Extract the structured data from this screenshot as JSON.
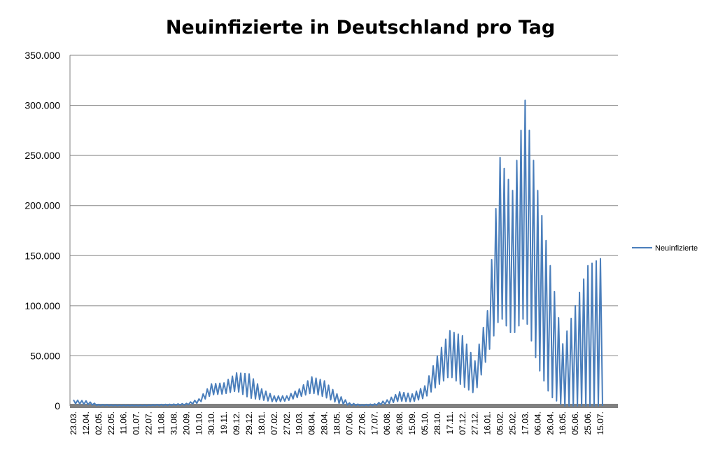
{
  "chart_data": {
    "type": "line",
    "title": "Neuinfizierte in Deutschland pro Tag",
    "xlabel": "",
    "ylabel": "",
    "ylim": [
      0,
      350000
    ],
    "yticks": [
      0,
      50000,
      100000,
      150000,
      200000,
      250000,
      300000,
      350000
    ],
    "ytick_labels": [
      "0",
      "50.000",
      "100.000",
      "150.000",
      "200.000",
      "250.000",
      "300.000",
      "350.000"
    ],
    "x_tick_labels": [
      "23.03.",
      "12.04.",
      "02.05.",
      "22.05.",
      "11.06.",
      "01.07.",
      "22.07.",
      "11.08.",
      "31.08.",
      "20.09.",
      "10.10.",
      "30.10.",
      "19.11.",
      "09.12.",
      "29.12.",
      "18.01.",
      "07.02.",
      "27.02.",
      "19.03.",
      "08.04.",
      "28.04.",
      "18.05.",
      "07.06.",
      "27.06.",
      "17.07.",
      "06.08.",
      "26.08.",
      "15.09.",
      "05.10.",
      "28.10.",
      "17.11.",
      "07.12.",
      "27.12.",
      "16.01.",
      "05.02.",
      "25.02.",
      "17.03.",
      "06.04.",
      "26.04.",
      "16.05.",
      "05.06.",
      "25.06.",
      "15.07."
    ],
    "grid": true,
    "legend_position": "right",
    "series": [
      {
        "name": "Neuinfizierte",
        "color": "#4a7ebb",
        "anchor_dates": [
          "23.03.",
          "12.04.",
          "02.05.",
          "22.05.",
          "11.06.",
          "01.07.",
          "22.07.",
          "11.08.",
          "31.08.",
          "20.09.",
          "10.10.",
          "30.10.",
          "19.11.",
          "09.12.",
          "29.12.",
          "18.01.",
          "07.02.",
          "27.02.",
          "19.03.",
          "08.04.",
          "28.04.",
          "18.05.",
          "07.06.",
          "27.06.",
          "17.07.",
          "06.08.",
          "26.08.",
          "15.09.",
          "05.10.",
          "28.10.",
          "17.11.",
          "07.12.",
          "27.12.",
          "16.01.",
          "05.02.",
          "25.02.",
          "17.03.",
          "06.04.",
          "26.04.",
          "16.05.",
          "05.06.",
          "25.06.",
          "15.07."
        ],
        "weekly_high": [
          6000,
          5000,
          1500,
          1000,
          800,
          600,
          900,
          1500,
          1800,
          2500,
          7000,
          22000,
          23000,
          33000,
          32000,
          17000,
          10000,
          10000,
          17000,
          29000,
          25000,
          12000,
          3000,
          1200,
          2000,
          6000,
          14000,
          12000,
          20000,
          50000,
          75000,
          70000,
          45000,
          95000,
          248000,
          215000,
          305000,
          215000,
          140000,
          62000,
          100000,
          140000,
          147000
        ],
        "weekly_low": [
          2500,
          1500,
          300,
          200,
          150,
          150,
          250,
          400,
          600,
          900,
          3000,
          11000,
          12000,
          15000,
          8000,
          6000,
          4000,
          5000,
          9000,
          13000,
          9000,
          3000,
          500,
          200,
          500,
          2000,
          5000,
          4000,
          8000,
          20000,
          30000,
          20000,
          12000,
          50000,
          90000,
          70000,
          90000,
          40000,
          10000,
          0,
          0,
          0,
          0
        ]
      }
    ]
  }
}
